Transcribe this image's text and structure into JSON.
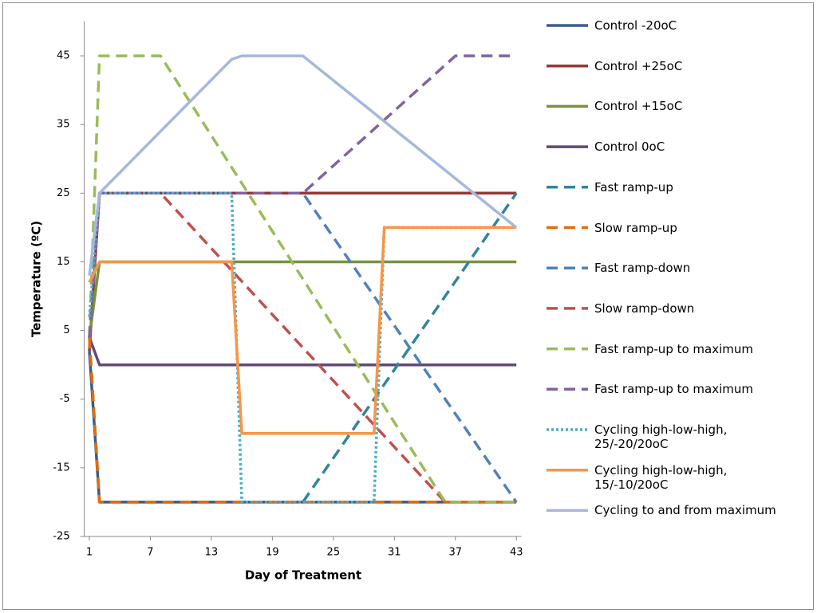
{
  "chart_data": {
    "type": "line",
    "xlabel": "Day of Treatment",
    "ylabel": "Temperature (ºC)",
    "xlim": [
      0.5,
      43.5
    ],
    "ylim": [
      -25,
      50
    ],
    "xticks": [
      1,
      7,
      13,
      19,
      25,
      31,
      37,
      43
    ],
    "yticks": [
      -25,
      -15,
      -5,
      5,
      15,
      25,
      35,
      45
    ],
    "legend": "right",
    "series": [
      {
        "name": "Control -20oC",
        "color": "#385d8a",
        "dash": "solid",
        "x": [
          1,
          2,
          43
        ],
        "values": [
          2,
          -20,
          -20
        ]
      },
      {
        "name": "Control +25oC",
        "color": "#953735",
        "dash": "solid",
        "x": [
          1,
          2,
          43
        ],
        "values": [
          2,
          25,
          25
        ]
      },
      {
        "name": "Control +15oC",
        "color": "#77933c",
        "dash": "solid",
        "x": [
          1,
          2,
          43
        ],
        "values": [
          4,
          15,
          15
        ]
      },
      {
        "name": "Control 0oC",
        "color": "#60497a",
        "dash": "solid",
        "x": [
          1,
          2,
          43
        ],
        "values": [
          4,
          0,
          0
        ]
      },
      {
        "name": "Fast ramp-up",
        "color": "#31859c",
        "dash": "dashed",
        "x": [
          1,
          2,
          22,
          43
        ],
        "values": [
          4,
          -20,
          -20,
          25
        ]
      },
      {
        "name": "Slow ramp-up",
        "color": "#e46c0a",
        "dash": "dashed",
        "x": [
          1,
          2,
          43
        ],
        "values": [
          4,
          -20,
          -20
        ]
      },
      {
        "name": "Fast ramp-down",
        "color": "#4f81bd",
        "dash": "dashed",
        "x": [
          1,
          2,
          22,
          43
        ],
        "values": [
          4,
          25,
          25,
          -20
        ]
      },
      {
        "name": "Slow ramp-down",
        "color": "#c0504d",
        "dash": "dashed",
        "x": [
          1,
          2,
          8,
          36,
          43
        ],
        "values": [
          4,
          25,
          25,
          -20,
          -20
        ]
      },
      {
        "name": "Fast ramp-up to maximum",
        "color": "#9bbb59",
        "dash": "dashed",
        "x": [
          1,
          2,
          8,
          36,
          43
        ],
        "values": [
          4,
          45,
          45,
          -20,
          -20
        ]
      },
      {
        "name": "Fast ramp-up to maximum",
        "color": "#8064a2",
        "dash": "dashed",
        "x": [
          1,
          2,
          22,
          37,
          43
        ],
        "values": [
          4,
          25,
          25,
          45,
          45
        ]
      },
      {
        "name": "Cycling high-low-high, 25/-20/20oC",
        "color": "#4bacc6",
        "dash": "dotted",
        "x": [
          1,
          2,
          15,
          16,
          29,
          30,
          43
        ],
        "values": [
          7,
          25,
          25,
          -20,
          -20,
          20,
          20
        ]
      },
      {
        "name": "Cycling high-low-high, 15/-10/20oC",
        "color": "#f79646",
        "dash": "solid",
        "x": [
          1,
          2,
          15,
          16,
          29,
          30,
          43
        ],
        "values": [
          12,
          15,
          15,
          -10,
          -10,
          20,
          20
        ]
      },
      {
        "name": "Cycling to and from maximum",
        "color": "#a5b8dc",
        "dash": "solid",
        "x": [
          1,
          2,
          15,
          16,
          22,
          43
        ],
        "values": [
          13,
          25,
          44.5,
          45,
          45,
          20
        ]
      }
    ]
  }
}
